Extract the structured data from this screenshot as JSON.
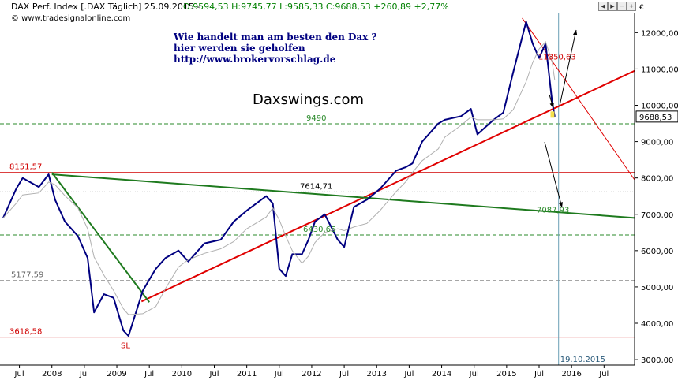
{
  "header": {
    "title": "DAX Perf. Index [.DAX  Täglich] 25.09.2015 -",
    "quote": "O:9594,53 H:9745,77 L:9585,33 C:9688,53 +260,89 +2,77%",
    "source": "© www.tradesignalonline.com",
    "currency": "€"
  },
  "annotation": {
    "line1": "Wie handelt man am besten  den Dax ?",
    "line2": "hier werden sie geholfen",
    "line3": "http://www.brokervorschlag.de"
  },
  "brand": "Daxswings.com",
  "colors": {
    "price": "#000080",
    "support_red": "#e00000",
    "trend_green": "#1e7a1e",
    "level_green": "#2a8a2a",
    "level_red": "#d00000",
    "vline": "#6a9fb5"
  },
  "chart_data": {
    "type": "line",
    "title": "DAX Perf. Index [.DAX Täglich]",
    "x_tick_labels": [
      "Jul",
      "2008",
      "Jul",
      "2009",
      "Jul",
      "2010",
      "Jul",
      "2011",
      "Jul",
      "2012",
      "Jul",
      "2013",
      "Jul",
      "2014",
      "Jul",
      "2015",
      "Jul",
      "2016",
      "Jul"
    ],
    "y_ticks": [
      3000,
      4000,
      5000,
      6000,
      7000,
      8000,
      9000,
      10000,
      11000,
      12000
    ],
    "y_tick_labels": [
      "3000,00",
      "4000,00",
      "5000,00",
      "6000,00",
      "7000,00",
      "8000,00",
      "9000,00",
      "10000,00",
      "11000,00",
      "12000,00"
    ],
    "x_range": [
      2007.25,
      2016.97
    ],
    "ylim": [
      2850,
      12550
    ],
    "last_price_label": "9688,53",
    "last_price": 9688.53,
    "series": [
      {
        "x": [
          2007.25,
          2007.45,
          2007.55,
          2007.8,
          2007.95,
          2008.05,
          2008.2,
          2008.4,
          2008.55,
          2008.65,
          2008.8,
          2008.95,
          2009.1,
          2009.18,
          2009.4,
          2009.6,
          2009.75,
          2009.95,
          2010.1,
          2010.35,
          2010.6,
          2010.8,
          2011.0,
          2011.3,
          2011.4,
          2011.5,
          2011.6,
          2011.7,
          2011.85,
          2011.95,
          2012.05,
          2012.2,
          2012.4,
          2012.5,
          2012.65,
          2012.85,
          2013.05,
          2013.3,
          2013.45,
          2013.55,
          2013.7,
          2013.95,
          2014.05,
          2014.3,
          2014.45,
          2014.55,
          2014.8,
          2014.95,
          2015.1,
          2015.3,
          2015.4,
          2015.5,
          2015.6,
          2015.7,
          2015.74
        ],
        "y": [
          6900,
          7700,
          8000,
          7750,
          8100,
          7400,
          6800,
          6400,
          5800,
          4300,
          4800,
          4700,
          3800,
          3650,
          4900,
          5500,
          5800,
          6000,
          5700,
          6200,
          6300,
          6800,
          7100,
          7500,
          7300,
          5500,
          5300,
          5900,
          5900,
          6300,
          6800,
          7000,
          6300,
          6100,
          7200,
          7400,
          7700,
          8200,
          8300,
          8400,
          9000,
          9500,
          9600,
          9700,
          9900,
          9200,
          9600,
          9800,
          10900,
          12300,
          11700,
          11300,
          11700,
          10100,
          9688.53
        ]
      }
    ],
    "horizontal_levels": [
      {
        "label": "8151,57",
        "value": 8151.57,
        "color": "red"
      },
      {
        "label": "3618,58",
        "value": 3618.58,
        "color": "red"
      },
      {
        "label": "5177,59",
        "value": 5177.59,
        "color": "gray"
      },
      {
        "label": "9490",
        "value": 9490,
        "color": "green"
      },
      {
        "label": "7614,71",
        "value": 7614.71,
        "color": "black"
      },
      {
        "label": "6430,65",
        "value": 6430.65,
        "color": "green"
      }
    ],
    "trendlines": [
      {
        "name": "support",
        "from": [
          2009.38,
          4600
        ],
        "to": [
          2016.97,
          10950
        ],
        "color": "red"
      },
      {
        "name": "resistance",
        "from": [
          2015.24,
          12400
        ],
        "to": [
          2016.97,
          7950
        ],
        "color": "red"
      },
      {
        "name": "long-term",
        "from": [
          2008.0,
          8100
        ],
        "to": [
          2016.97,
          6900
        ],
        "color": "green"
      },
      {
        "name": "2008 decline",
        "from": [
          2008.0,
          8150
        ],
        "to": [
          2009.5,
          4580
        ],
        "color": "green"
      }
    ],
    "annotations": [
      {
        "text": "11350,63",
        "value": 11350.63
      },
      {
        "text": "7087,93",
        "value": 7087.93
      },
      {
        "text": "SL",
        "value": 3618.58
      },
      {
        "text": "19.10.2015",
        "x": 2015.8
      }
    ]
  }
}
